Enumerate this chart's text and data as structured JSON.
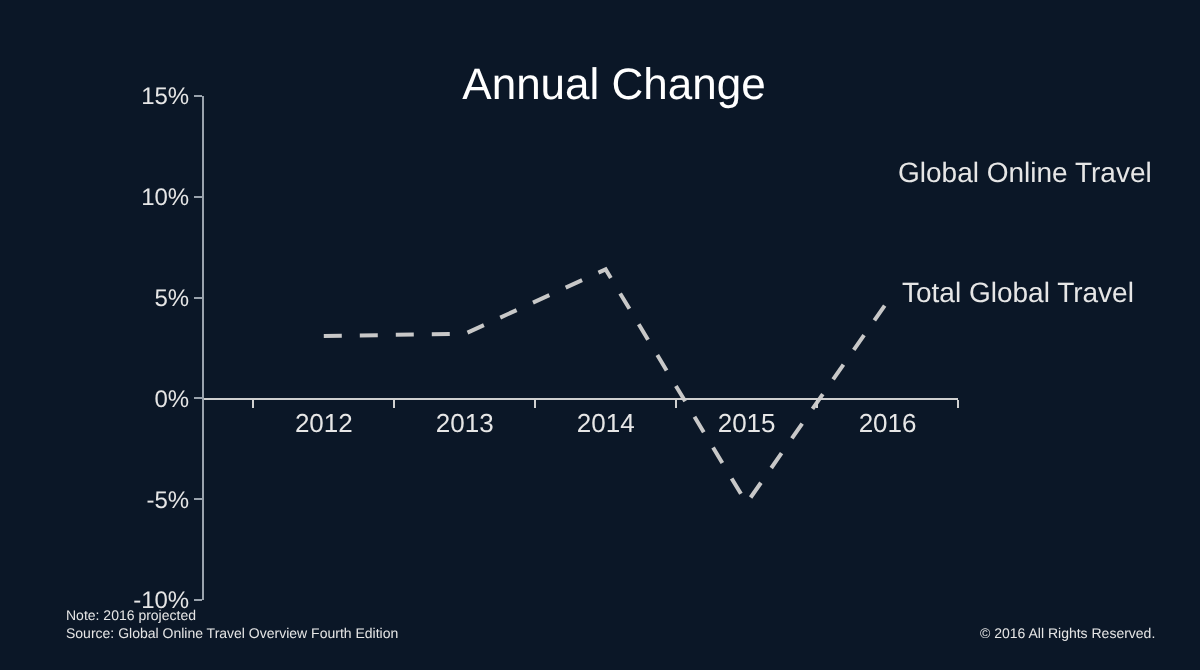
{
  "chart_data": {
    "type": "line",
    "title": "Annual Change",
    "categories": [
      "2012",
      "2013",
      "2014",
      "2015",
      "2016"
    ],
    "series": [
      {
        "name": "Total Global Travel",
        "color": "#c8c8c8",
        "values": [
          3.1,
          3.2,
          6.4,
          -5.2,
          4.8
        ]
      }
    ],
    "ylim": [
      -10,
      15
    ],
    "yticks": [
      {
        "value": -10,
        "label": "-10%"
      },
      {
        "value": -5,
        "label": "-5%"
      },
      {
        "value": 0,
        "label": "0%"
      },
      {
        "value": 5,
        "label": "5%"
      },
      {
        "value": 10,
        "label": "10%"
      },
      {
        "value": 15,
        "label": "15%"
      }
    ],
    "line_style": "dashed",
    "marker": "none",
    "grid": false,
    "legend": false,
    "annotations": [
      "Global Online Travel",
      "Note: 2016 projected",
      "Source: Global Online Travel Overview Fourth Edition",
      "© 2016 All Rights Reserved."
    ]
  }
}
